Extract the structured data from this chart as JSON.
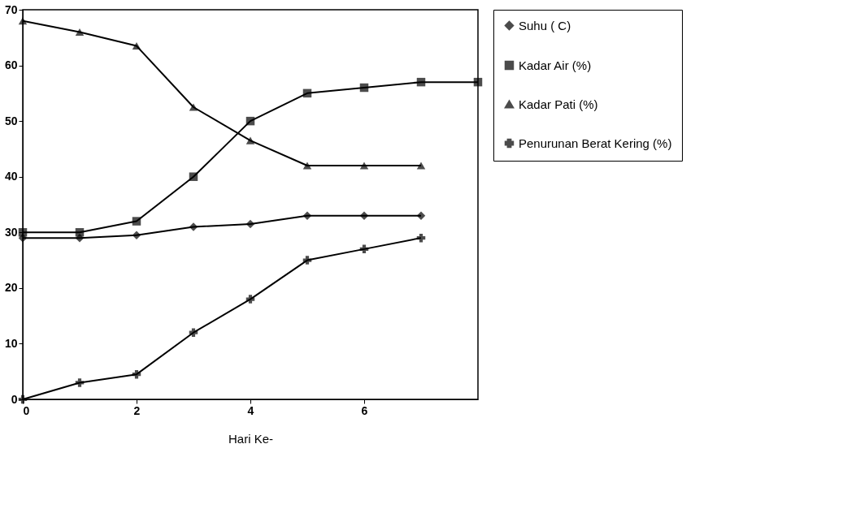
{
  "chart_data": {
    "type": "line",
    "xlabel": "Hari Ke-",
    "x": [
      0,
      1,
      2,
      3,
      4,
      5,
      6,
      7,
      8
    ],
    "xlim": [
      0,
      8
    ],
    "xticks": [
      0,
      2,
      4,
      6
    ],
    "ylim": [
      0,
      70
    ],
    "yticks": [
      0,
      10,
      20,
      30,
      40,
      50,
      60,
      70
    ],
    "grid": false,
    "legend": "right",
    "line_style": "solid",
    "series": [
      {
        "name": "Suhu ( C)",
        "color": "#000000",
        "marker": "diamond",
        "values": [
          29,
          29,
          29.5,
          31,
          31.5,
          33,
          33,
          33,
          null
        ]
      },
      {
        "name": "Kadar Air (%)",
        "color": "#000000",
        "marker": "square",
        "values": [
          30,
          30,
          32,
          40,
          50,
          55,
          56,
          57,
          57
        ]
      },
      {
        "name": "Kadar Pati (%)",
        "color": "#000000",
        "marker": "triangle",
        "values": [
          68,
          66,
          63.5,
          52.5,
          46.5,
          42,
          42,
          42,
          null
        ]
      },
      {
        "name": "Penurunan Berat Kering (%)",
        "color": "#000000",
        "marker": "cross",
        "values": [
          0,
          3,
          4.5,
          12,
          18,
          25,
          27,
          29,
          null
        ]
      }
    ]
  }
}
